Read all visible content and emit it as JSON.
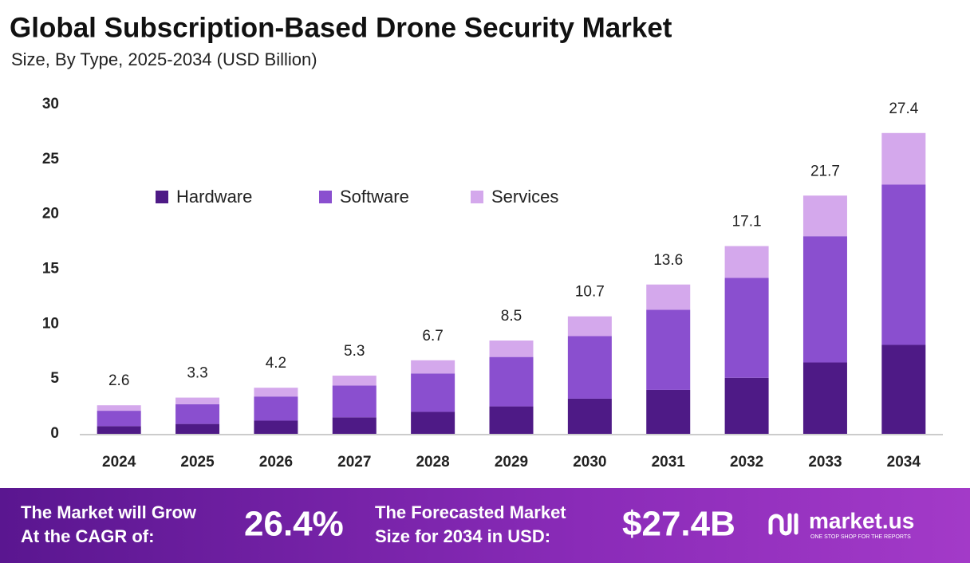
{
  "chart_data": {
    "type": "stacked_bar",
    "title": "Global Subscription-Based Drone Security Market",
    "subtitle": "Size, By Type, 2025-2034 (USD Billion)",
    "categories": [
      "2024",
      "2025",
      "2026",
      "2027",
      "2028",
      "2029",
      "2030",
      "2031",
      "2032",
      "2033",
      "2034"
    ],
    "series": [
      {
        "name": "Hardware",
        "color": "#4e1a86",
        "values": [
          0.7,
          0.9,
          1.2,
          1.5,
          2.0,
          2.5,
          3.2,
          4.0,
          5.1,
          6.5,
          8.1
        ]
      },
      {
        "name": "Software",
        "color": "#8a4fcf",
        "values": [
          1.4,
          1.8,
          2.2,
          2.9,
          3.5,
          4.5,
          5.7,
          7.3,
          9.1,
          11.5,
          14.6
        ]
      },
      {
        "name": "Services",
        "color": "#d4a8ec",
        "values": [
          0.5,
          0.6,
          0.8,
          0.9,
          1.2,
          1.5,
          1.8,
          2.3,
          2.9,
          3.7,
          4.7
        ]
      }
    ],
    "totals": [
      2.6,
      3.3,
      4.2,
      5.3,
      6.7,
      8.5,
      10.7,
      13.6,
      17.1,
      21.7,
      27.4
    ],
    "ylim": [
      0,
      30
    ],
    "yticks": [
      0,
      5,
      10,
      15,
      20,
      25,
      30
    ],
    "grid": false,
    "legend": "top-left"
  },
  "footer": {
    "cagr_label": [
      "The Market will Grow",
      "At the CAGR of:"
    ],
    "cagr": "26.4%",
    "forecast_label": [
      "The Forecasted Market",
      "Size for 2034 in USD:"
    ],
    "forecast": "$27.4B",
    "logo": "market.us",
    "tagline": "ONE STOP SHOP FOR THE REPORTS"
  }
}
